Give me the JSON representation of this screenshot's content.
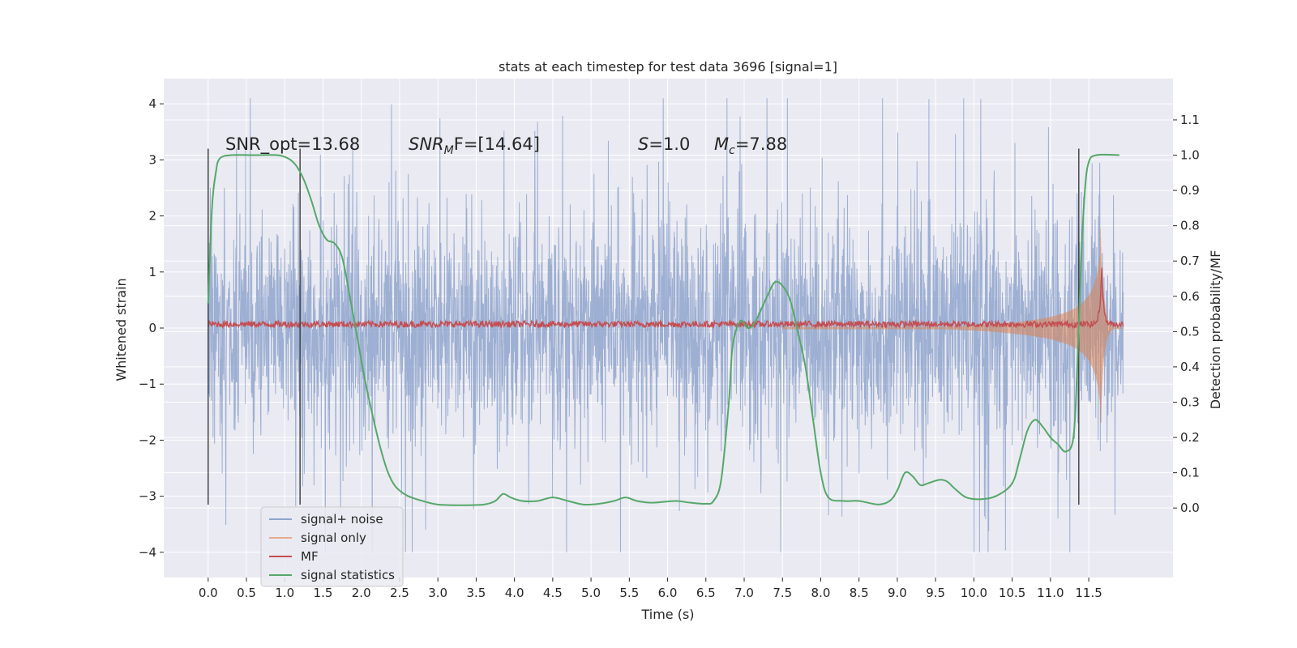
{
  "chart_data": {
    "type": "line",
    "title": "stats at each timestep for test data 3696 [signal=1]",
    "xlabel": "Time (s)",
    "ylabel_left": "Whitened strain",
    "ylabel_right": "Detection probability/MF",
    "xlim": [
      -0.58,
      12.6
    ],
    "ylim_left": [
      -4.45,
      4.45
    ],
    "ylim_right": [
      -0.197,
      1.217
    ],
    "grid": true,
    "background": "#eaeaf2",
    "x_ticks": [
      "0.0",
      "0.5",
      "1.0",
      "1.5",
      "2.0",
      "2.5",
      "3.0",
      "3.5",
      "4.0",
      "4.5",
      "5.0",
      "5.5",
      "6.0",
      "6.5",
      "7.0",
      "7.5",
      "8.0",
      "8.5",
      "9.0",
      "9.5",
      "10.0",
      "10.5",
      "11.0",
      "11.5"
    ],
    "y_ticks_left": [
      "4",
      "3",
      "2",
      "1",
      "0",
      "−1",
      "−2",
      "−3",
      "−4"
    ],
    "y_ticks_right": [
      "1.1",
      "1.0",
      "0.9",
      "0.8",
      "0.7",
      "0.6",
      "0.5",
      "0.4",
      "0.3",
      "0.2",
      "0.1",
      "0.0"
    ],
    "annotations": {
      "snr_opt": "SNR_opt=13.68",
      "snr_mf_name": "SNR",
      "snr_mf_sub": "M",
      "snr_mf_rest": "F=[14.64]",
      "s_name": "S",
      "s_rest": "=1.0",
      "mc_name": "M",
      "mc_sub": "c",
      "mc_rest": "=7.88"
    },
    "vertical_lines_x": [
      0.0,
      1.2,
      11.37
    ],
    "series": [
      {
        "name": "signal+ noise",
        "color": "#8fa4cd",
        "axis": "left",
        "kind": "noisy",
        "x_range": [
          0.0,
          11.95
        ],
        "amplitude_range": [
          -4.0,
          4.1
        ]
      },
      {
        "name": "signal only",
        "color": "#dd8452",
        "axis": "left",
        "kind": "chirp",
        "x_range": [
          7.5,
          11.95
        ],
        "peak_x": 11.65,
        "peak_amplitude": 1.8
      },
      {
        "name": "MF",
        "color": "#c44e52",
        "axis": "right",
        "x_range": [
          0.0,
          11.95
        ],
        "baseline": 0.5,
        "peak_x": 11.67,
        "peak_value": 0.69
      },
      {
        "name": "signal statistics",
        "color": "#55a868",
        "axis": "right",
        "points": [
          [
            0.0,
            0.58
          ],
          [
            0.05,
            0.85
          ],
          [
            0.1,
            0.95
          ],
          [
            0.15,
            0.99
          ],
          [
            0.3,
            1.0
          ],
          [
            0.6,
            1.0
          ],
          [
            0.9,
            1.0
          ],
          [
            1.05,
            0.99
          ],
          [
            1.15,
            0.97
          ],
          [
            1.25,
            0.93
          ],
          [
            1.35,
            0.87
          ],
          [
            1.45,
            0.8
          ],
          [
            1.55,
            0.76
          ],
          [
            1.65,
            0.75
          ],
          [
            1.75,
            0.71
          ],
          [
            1.85,
            0.6
          ],
          [
            1.95,
            0.48
          ],
          [
            2.05,
            0.36
          ],
          [
            2.15,
            0.26
          ],
          [
            2.25,
            0.17
          ],
          [
            2.35,
            0.1
          ],
          [
            2.45,
            0.06
          ],
          [
            2.6,
            0.035
          ],
          [
            2.8,
            0.02
          ],
          [
            3.0,
            0.01
          ],
          [
            3.3,
            0.008
          ],
          [
            3.6,
            0.01
          ],
          [
            3.75,
            0.02
          ],
          [
            3.85,
            0.04
          ],
          [
            3.95,
            0.03
          ],
          [
            4.1,
            0.02
          ],
          [
            4.3,
            0.02
          ],
          [
            4.5,
            0.03
          ],
          [
            4.7,
            0.02
          ],
          [
            4.9,
            0.01
          ],
          [
            5.1,
            0.012
          ],
          [
            5.3,
            0.02
          ],
          [
            5.45,
            0.03
          ],
          [
            5.6,
            0.02
          ],
          [
            5.8,
            0.015
          ],
          [
            6.1,
            0.02
          ],
          [
            6.3,
            0.015
          ],
          [
            6.5,
            0.012
          ],
          [
            6.6,
            0.02
          ],
          [
            6.7,
            0.08
          ],
          [
            6.8,
            0.3
          ],
          [
            6.85,
            0.46
          ],
          [
            6.95,
            0.53
          ],
          [
            7.05,
            0.51
          ],
          [
            7.15,
            0.53
          ],
          [
            7.3,
            0.6
          ],
          [
            7.4,
            0.64
          ],
          [
            7.5,
            0.63
          ],
          [
            7.6,
            0.59
          ],
          [
            7.7,
            0.5
          ],
          [
            7.8,
            0.4
          ],
          [
            7.9,
            0.25
          ],
          [
            8.0,
            0.1
          ],
          [
            8.1,
            0.03
          ],
          [
            8.3,
            0.02
          ],
          [
            8.5,
            0.02
          ],
          [
            8.75,
            0.01
          ],
          [
            8.9,
            0.02
          ],
          [
            9.0,
            0.05
          ],
          [
            9.1,
            0.1
          ],
          [
            9.2,
            0.09
          ],
          [
            9.3,
            0.065
          ],
          [
            9.4,
            0.07
          ],
          [
            9.55,
            0.08
          ],
          [
            9.65,
            0.075
          ],
          [
            9.75,
            0.055
          ],
          [
            9.9,
            0.03
          ],
          [
            10.1,
            0.025
          ],
          [
            10.3,
            0.035
          ],
          [
            10.5,
            0.07
          ],
          [
            10.6,
            0.14
          ],
          [
            10.7,
            0.22
          ],
          [
            10.8,
            0.25
          ],
          [
            10.9,
            0.23
          ],
          [
            11.0,
            0.2
          ],
          [
            11.1,
            0.18
          ],
          [
            11.2,
            0.16
          ],
          [
            11.3,
            0.2
          ],
          [
            11.35,
            0.4
          ],
          [
            11.4,
            0.7
          ],
          [
            11.45,
            0.9
          ],
          [
            11.5,
            0.98
          ],
          [
            11.6,
            1.0
          ],
          [
            11.9,
            1.0
          ]
        ]
      }
    ],
    "legend": {
      "position": "lower-left",
      "entries": [
        {
          "label": "signal+ noise",
          "color": "#8fa4cd"
        },
        {
          "label": "signal only",
          "color": "#e8a98d"
        },
        {
          "label": "MF",
          "color": "#c44e52"
        },
        {
          "label": "signal statistics",
          "color": "#55a868"
        }
      ]
    }
  }
}
